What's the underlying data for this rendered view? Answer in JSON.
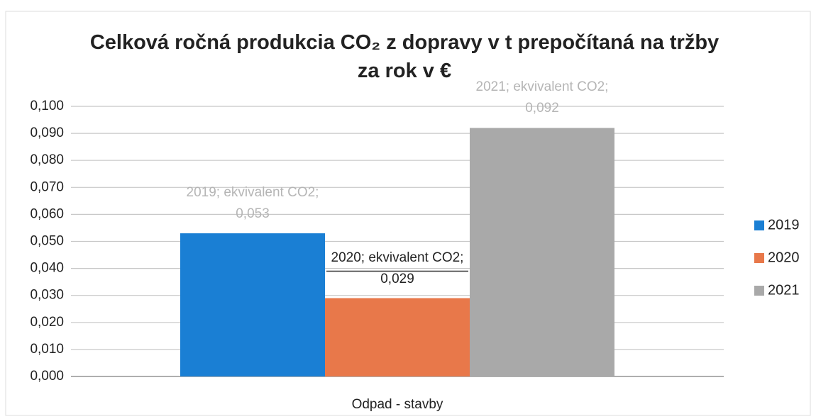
{
  "chart_data": {
    "type": "bar",
    "title": "Celková ročná produkcia CO₂ z dopravy v t prepočítaná na tržby za rok v €",
    "categories": [
      "Odpad - stavby"
    ],
    "series": [
      {
        "name": "2019",
        "color": "#1a7fd4",
        "values": [
          0.053
        ],
        "value_labels": [
          "2019; ekvivalent CO2; 0,053"
        ]
      },
      {
        "name": "2020",
        "color": "#e8784a",
        "values": [
          0.029
        ],
        "value_labels": [
          "2020; ekvivalent CO2; 0,029"
        ]
      },
      {
        "name": "2021",
        "color": "#a9a9a9",
        "values": [
          0.092
        ],
        "value_labels": [
          "2021; ekvivalent CO2; 0,092"
        ]
      }
    ],
    "ylim": [
      0,
      0.1
    ],
    "yticks": [
      {
        "value": 0,
        "label": "0,000"
      },
      {
        "value": 0.01,
        "label": "0,010"
      },
      {
        "value": 0.02,
        "label": "0,020"
      },
      {
        "value": 0.03,
        "label": "0,030"
      },
      {
        "value": 0.04,
        "label": "0,040"
      },
      {
        "value": 0.05,
        "label": "0,050"
      },
      {
        "value": 0.06,
        "label": "0,060"
      },
      {
        "value": 0.07,
        "label": "0,070"
      },
      {
        "value": 0.08,
        "label": "0,080"
      },
      {
        "value": 0.09,
        "label": "0,090"
      },
      {
        "value": 0.1,
        "label": "0,100"
      }
    ],
    "grid": true,
    "legend": "right"
  }
}
